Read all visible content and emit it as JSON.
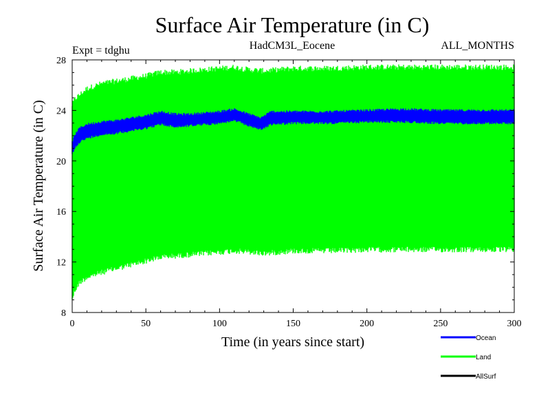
{
  "chart_data": {
    "type": "line",
    "title": "Surface Air Temperature (in C)",
    "experiment_label": "Expt = tdghu",
    "model_label": "HadCM3L_Eocene",
    "months_label": "ALL_MONTHS",
    "xlabel": "Time (in years since start)",
    "ylabel": "Surface Air Temperature (in C)",
    "xlim": [
      0,
      300
    ],
    "ylim": [
      8,
      28
    ],
    "xticks": [
      0,
      50,
      100,
      150,
      200,
      250,
      300
    ],
    "yticks": [
      8,
      12,
      16,
      20,
      24,
      28
    ],
    "legend_position": "bottom-right",
    "series": [
      {
        "name": "Land",
        "color": "#00ff00",
        "style": "seasonal-cycle band (monthly values)",
        "x": [
          0,
          2,
          5,
          10,
          20,
          30,
          40,
          50,
          60,
          70,
          80,
          90,
          100,
          110,
          120,
          130,
          140,
          150,
          175,
          200,
          225,
          250,
          275,
          300
        ],
        "min": [
          9.3,
          10.0,
          10.6,
          11.0,
          11.4,
          11.7,
          12.0,
          12.3,
          12.6,
          12.7,
          12.8,
          12.9,
          13.0,
          13.1,
          13.0,
          12.9,
          13.0,
          13.1,
          13.1,
          13.2,
          13.2,
          13.2,
          13.2,
          13.2
        ],
        "max": [
          24.2,
          24.7,
          25.0,
          25.5,
          25.9,
          26.1,
          26.3,
          26.5,
          26.8,
          26.8,
          26.9,
          27.0,
          27.1,
          27.2,
          27.0,
          26.9,
          27.0,
          27.1,
          27.1,
          27.2,
          27.2,
          27.2,
          27.2,
          27.2
        ]
      },
      {
        "name": "Ocean",
        "color": "#0000ff",
        "style": "seasonal-cycle band (monthly values)",
        "x": [
          0,
          2,
          5,
          10,
          20,
          30,
          40,
          50,
          60,
          70,
          80,
          90,
          100,
          110,
          120,
          128,
          135,
          150,
          175,
          200,
          225,
          250,
          275,
          300
        ],
        "min": [
          20.6,
          21.2,
          21.6,
          21.9,
          22.2,
          22.3,
          22.5,
          22.7,
          23.0,
          22.8,
          22.9,
          23.0,
          23.1,
          23.3,
          22.9,
          22.6,
          23.0,
          23.1,
          23.1,
          23.2,
          23.2,
          23.1,
          23.1,
          23.1
        ],
        "max": [
          21.4,
          22.0,
          22.5,
          22.8,
          23.0,
          23.1,
          23.3,
          23.5,
          23.8,
          23.6,
          23.6,
          23.7,
          23.8,
          24.0,
          23.6,
          23.3,
          23.8,
          23.8,
          23.8,
          23.9,
          24.0,
          23.9,
          23.9,
          23.9
        ]
      },
      {
        "name": "AllSurf",
        "color": "#000000",
        "style": "line (hidden behind other series)",
        "x": [],
        "values": []
      }
    ]
  }
}
